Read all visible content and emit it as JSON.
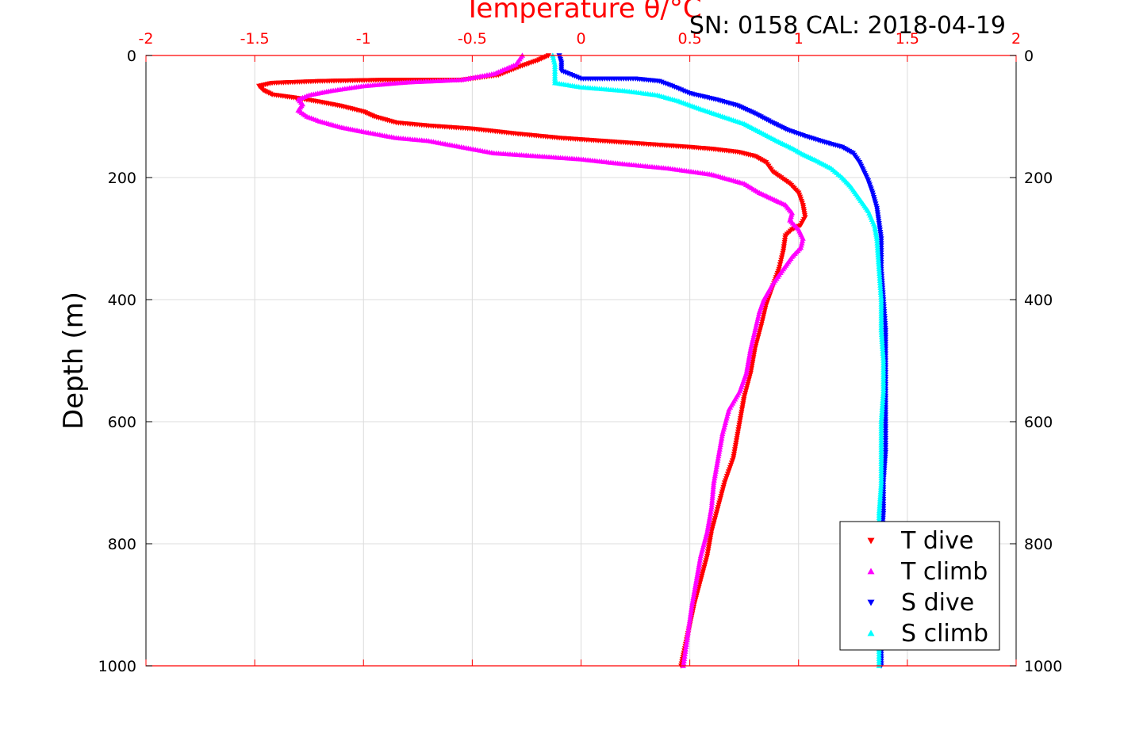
{
  "chart_data": {
    "type": "scatter",
    "title": "Temperature θ/°C",
    "corner_text": "SN: 0158  CAL: 2018-04-19",
    "xlabel": "Temperature θ/°C",
    "ylabel": "Depth (m)",
    "xlim": [
      -2,
      2
    ],
    "ylim": [
      0,
      1000
    ],
    "y_reversed": true,
    "x_ticks": [
      "-2",
      "-1.5",
      "-1",
      "-0.5",
      "0",
      "0.5",
      "1",
      "1.5",
      "2"
    ],
    "x_tick_values": [
      -2,
      -1.5,
      -1,
      -0.5,
      0,
      0.5,
      1,
      1.5,
      2
    ],
    "y_ticks": [
      "0",
      "200",
      "400",
      "600",
      "800",
      "1000"
    ],
    "y_tick_values": [
      0,
      200,
      400,
      600,
      800,
      1000
    ],
    "grid": true,
    "legend_position": "bottom-right",
    "series": [
      {
        "name": "T dive",
        "marker": "triangle-down",
        "color": "#ff0000",
        "points": [
          [
            -0.15,
            0
          ],
          [
            -0.2,
            8
          ],
          [
            -0.28,
            18
          ],
          [
            -0.38,
            32
          ],
          [
            -0.55,
            40
          ],
          [
            -0.9,
            40
          ],
          [
            -1.2,
            42
          ],
          [
            -1.42,
            45
          ],
          [
            -1.48,
            50
          ],
          [
            -1.46,
            57
          ],
          [
            -1.42,
            64
          ],
          [
            -1.3,
            70
          ],
          [
            -1.2,
            76
          ],
          [
            -1.1,
            83
          ],
          [
            -1.0,
            92
          ],
          [
            -0.95,
            100
          ],
          [
            -0.85,
            110
          ],
          [
            -0.7,
            115
          ],
          [
            -0.5,
            120
          ],
          [
            -0.3,
            128
          ],
          [
            -0.1,
            135
          ],
          [
            0.1,
            140
          ],
          [
            0.3,
            145
          ],
          [
            0.5,
            150
          ],
          [
            0.6,
            153
          ],
          [
            0.72,
            158
          ],
          [
            0.8,
            165
          ],
          [
            0.85,
            175
          ],
          [
            0.88,
            190
          ],
          [
            0.92,
            200
          ],
          [
            0.96,
            210
          ],
          [
            1.0,
            225
          ],
          [
            1.02,
            245
          ],
          [
            1.03,
            265
          ],
          [
            1.01,
            278
          ],
          [
            0.97,
            285
          ],
          [
            0.94,
            295
          ],
          [
            0.93,
            320
          ],
          [
            0.91,
            350
          ],
          [
            0.88,
            380
          ],
          [
            0.85,
            410
          ],
          [
            0.83,
            440
          ],
          [
            0.8,
            480
          ],
          [
            0.78,
            520
          ],
          [
            0.75,
            560
          ],
          [
            0.74,
            580
          ],
          [
            0.72,
            620
          ],
          [
            0.7,
            660
          ],
          [
            0.66,
            700
          ],
          [
            0.63,
            740
          ],
          [
            0.6,
            780
          ],
          [
            0.58,
            820
          ],
          [
            0.55,
            860
          ],
          [
            0.52,
            900
          ],
          [
            0.49,
            950
          ],
          [
            0.46,
            1000
          ]
        ]
      },
      {
        "name": "T climb",
        "marker": "triangle-up",
        "color": "#ff00ff",
        "points": [
          [
            -0.27,
            0
          ],
          [
            -0.3,
            15
          ],
          [
            -0.4,
            30
          ],
          [
            -0.55,
            40
          ],
          [
            -0.8,
            44
          ],
          [
            -1.0,
            50
          ],
          [
            -1.15,
            58
          ],
          [
            -1.25,
            65
          ],
          [
            -1.3,
            72
          ],
          [
            -1.28,
            80
          ],
          [
            -1.3,
            90
          ],
          [
            -1.26,
            100
          ],
          [
            -1.2,
            108
          ],
          [
            -1.1,
            118
          ],
          [
            -1.0,
            125
          ],
          [
            -0.85,
            135
          ],
          [
            -0.7,
            140
          ],
          [
            -0.55,
            150
          ],
          [
            -0.4,
            160
          ],
          [
            -0.2,
            165
          ],
          [
            0.0,
            170
          ],
          [
            0.2,
            178
          ],
          [
            0.4,
            185
          ],
          [
            0.6,
            195
          ],
          [
            0.75,
            210
          ],
          [
            0.82,
            225
          ],
          [
            0.88,
            235
          ],
          [
            0.94,
            245
          ],
          [
            0.97,
            258
          ],
          [
            0.96,
            270
          ],
          [
            1.0,
            285
          ],
          [
            1.02,
            300
          ],
          [
            1.01,
            315
          ],
          [
            0.97,
            330
          ],
          [
            0.93,
            350
          ],
          [
            0.88,
            375
          ],
          [
            0.84,
            400
          ],
          [
            0.82,
            420
          ],
          [
            0.8,
            450
          ],
          [
            0.78,
            480
          ],
          [
            0.76,
            520
          ],
          [
            0.73,
            550
          ],
          [
            0.68,
            580
          ],
          [
            0.65,
            620
          ],
          [
            0.63,
            660
          ],
          [
            0.61,
            700
          ],
          [
            0.6,
            740
          ],
          [
            0.58,
            780
          ],
          [
            0.55,
            820
          ],
          [
            0.53,
            860
          ],
          [
            0.51,
            900
          ],
          [
            0.49,
            950
          ],
          [
            0.47,
            1000
          ]
        ]
      },
      {
        "name": "S dive",
        "marker": "triangle-down",
        "color": "#0000ff",
        "points": [
          [
            -0.1,
            0
          ],
          [
            -0.09,
            12
          ],
          [
            -0.09,
            25
          ],
          [
            0.0,
            38
          ],
          [
            0.25,
            38
          ],
          [
            0.36,
            42
          ],
          [
            0.42,
            50
          ],
          [
            0.5,
            62
          ],
          [
            0.62,
            72
          ],
          [
            0.72,
            82
          ],
          [
            0.8,
            95
          ],
          [
            0.88,
            110
          ],
          [
            0.95,
            122
          ],
          [
            1.03,
            132
          ],
          [
            1.12,
            142
          ],
          [
            1.2,
            150
          ],
          [
            1.25,
            160
          ],
          [
            1.28,
            175
          ],
          [
            1.3,
            190
          ],
          [
            1.32,
            205
          ],
          [
            1.34,
            225
          ],
          [
            1.36,
            250
          ],
          [
            1.37,
            275
          ],
          [
            1.38,
            300
          ],
          [
            1.38,
            350
          ],
          [
            1.39,
            400
          ],
          [
            1.4,
            450
          ],
          [
            1.4,
            500
          ],
          [
            1.4,
            550
          ],
          [
            1.4,
            600
          ],
          [
            1.4,
            650
          ],
          [
            1.39,
            700
          ],
          [
            1.39,
            750
          ],
          [
            1.38,
            800
          ],
          [
            1.38,
            850
          ],
          [
            1.38,
            900
          ],
          [
            1.38,
            950
          ],
          [
            1.38,
            1000
          ]
        ]
      },
      {
        "name": "S climb",
        "marker": "triangle-up",
        "color": "#00ffff",
        "points": [
          [
            -0.13,
            0
          ],
          [
            -0.12,
            15
          ],
          [
            -0.12,
            30
          ],
          [
            -0.12,
            45
          ],
          [
            0.0,
            52
          ],
          [
            0.2,
            58
          ],
          [
            0.35,
            65
          ],
          [
            0.45,
            75
          ],
          [
            0.55,
            88
          ],
          [
            0.65,
            100
          ],
          [
            0.75,
            112
          ],
          [
            0.82,
            125
          ],
          [
            0.9,
            140
          ],
          [
            0.97,
            152
          ],
          [
            1.02,
            162
          ],
          [
            1.08,
            172
          ],
          [
            1.15,
            185
          ],
          [
            1.2,
            200
          ],
          [
            1.24,
            215
          ],
          [
            1.28,
            235
          ],
          [
            1.32,
            255
          ],
          [
            1.35,
            280
          ],
          [
            1.36,
            300
          ],
          [
            1.37,
            350
          ],
          [
            1.38,
            400
          ],
          [
            1.38,
            450
          ],
          [
            1.39,
            500
          ],
          [
            1.39,
            550
          ],
          [
            1.38,
            600
          ],
          [
            1.38,
            650
          ],
          [
            1.38,
            700
          ],
          [
            1.37,
            750
          ],
          [
            1.37,
            800
          ],
          [
            1.37,
            850
          ],
          [
            1.37,
            900
          ],
          [
            1.37,
            950
          ],
          [
            1.37,
            1000
          ]
        ]
      }
    ]
  }
}
